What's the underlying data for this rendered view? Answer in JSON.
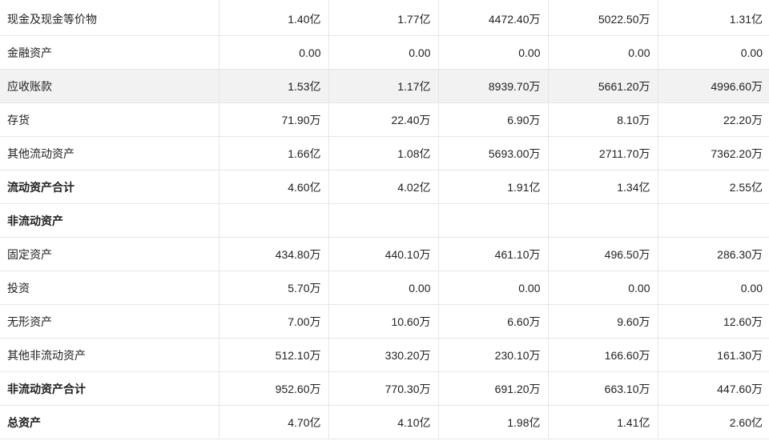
{
  "table": {
    "rows": [
      {
        "label": "现金及现金等价物",
        "values": [
          "1.40亿",
          "1.77亿",
          "4472.40万",
          "5022.50万",
          "1.31亿"
        ]
      },
      {
        "label": "金融资产",
        "values": [
          "0.00",
          "0.00",
          "0.00",
          "0.00",
          "0.00"
        ]
      },
      {
        "label": "应收账款",
        "values": [
          "1.53亿",
          "1.17亿",
          "8939.70万",
          "5661.20万",
          "4996.60万"
        ],
        "highlight": true
      },
      {
        "label": "存货",
        "values": [
          "71.90万",
          "22.40万",
          "6.90万",
          "8.10万",
          "22.20万"
        ]
      },
      {
        "label": "其他流动资产",
        "values": [
          "1.66亿",
          "1.08亿",
          "5693.00万",
          "2711.70万",
          "7362.20万"
        ]
      },
      {
        "label": "流动资产合计",
        "values": [
          "4.60亿",
          "4.02亿",
          "1.91亿",
          "1.34亿",
          "2.55亿"
        ],
        "bold": true
      },
      {
        "label": "非流动资产",
        "values": [
          "",
          "",
          "",
          "",
          ""
        ],
        "bold": true
      },
      {
        "label": "固定资产",
        "values": [
          "434.80万",
          "440.10万",
          "461.10万",
          "496.50万",
          "286.30万"
        ]
      },
      {
        "label": "投资",
        "values": [
          "5.70万",
          "0.00",
          "0.00",
          "0.00",
          "0.00"
        ]
      },
      {
        "label": "无形资产",
        "values": [
          "7.00万",
          "10.60万",
          "6.60万",
          "9.60万",
          "12.60万"
        ]
      },
      {
        "label": "其他非流动资产",
        "values": [
          "512.10万",
          "330.20万",
          "230.10万",
          "166.60万",
          "161.30万"
        ]
      },
      {
        "label": "非流动资产合计",
        "values": [
          "952.60万",
          "770.30万",
          "691.20万",
          "663.10万",
          "447.60万"
        ],
        "bold": true
      },
      {
        "label": "总资产",
        "values": [
          "4.70亿",
          "4.10亿",
          "1.98亿",
          "1.41亿",
          "2.60亿"
        ],
        "bold": true
      }
    ]
  }
}
